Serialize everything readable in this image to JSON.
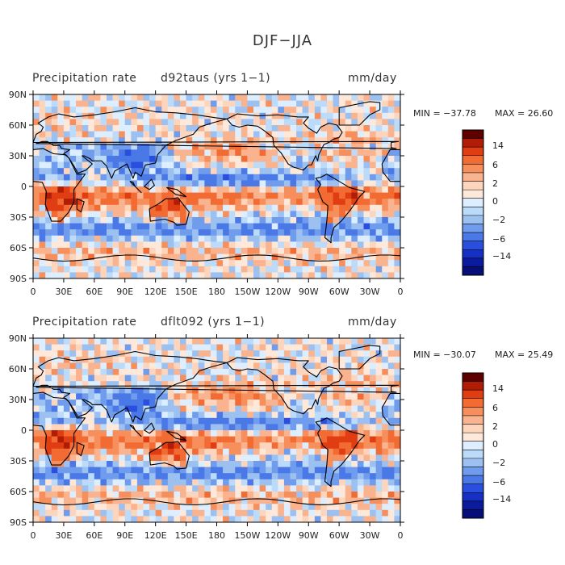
{
  "figure": {
    "title": "DJF−JJA"
  },
  "colors": [
    "#5e0000",
    "#b01c06",
    "#e03d12",
    "#f26b33",
    "#f78f5c",
    "#fab38f",
    "#fdd5bd",
    "#fde8da",
    "#dceeff",
    "#bcdaf9",
    "#9cc1f1",
    "#6f9cec",
    "#4a78e6",
    "#2a4fdf",
    "#1630c4",
    "#0a1b9e",
    "#060f78"
  ],
  "chart_data": [
    {
      "type": "heatmap",
      "title": "Precipitation rate",
      "run": "d92taus (yrs 1−1)",
      "units": "mm/day",
      "min_label": "MIN = −37.78",
      "max_label": "MAX =   26.60",
      "min": -37.78,
      "max": 26.6,
      "xlabel": "",
      "ylabel": "",
      "xlim": [
        0,
        360
      ],
      "ylim": [
        -90,
        90
      ],
      "xticks": [
        "0",
        "30E",
        "60E",
        "90E",
        "120E",
        "150E",
        "180",
        "150W",
        "120W",
        "90W",
        "60W",
        "30W",
        "0"
      ],
      "yticks": [
        "90N",
        "60N",
        "30N",
        "0",
        "30S",
        "60S",
        "90S"
      ],
      "colorbar_labels": [
        "14",
        "6",
        "2",
        "0",
        "−2",
        "−6",
        "−14"
      ]
    },
    {
      "type": "heatmap",
      "title": "Precipitation rate",
      "run": "dflt092 (yrs 1−1)",
      "units": "mm/day",
      "min_label": "MIN = −30.07",
      "max_label": "MAX =   25.49",
      "min": -30.07,
      "max": 25.49,
      "xlabel": "",
      "ylabel": "",
      "xlim": [
        0,
        360
      ],
      "ylim": [
        -90,
        90
      ],
      "xticks": [
        "0",
        "30E",
        "60E",
        "90E",
        "120E",
        "150E",
        "180",
        "150W",
        "120W",
        "90W",
        "60W",
        "30W",
        "0"
      ],
      "yticks": [
        "90N",
        "60N",
        "30N",
        "0",
        "30S",
        "60S",
        "90S"
      ],
      "colorbar_labels": [
        "14",
        "6",
        "2",
        "0",
        "−2",
        "−6",
        "−14"
      ]
    }
  ]
}
